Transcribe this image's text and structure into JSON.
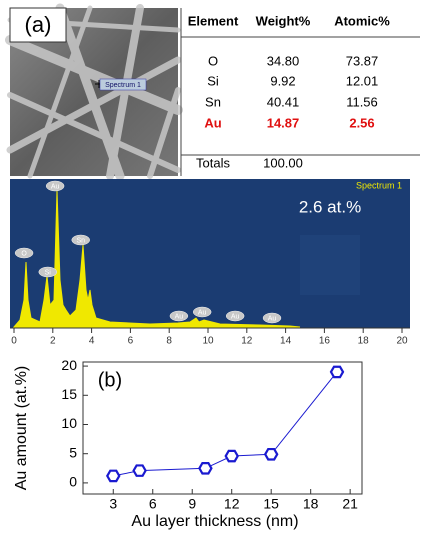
{
  "panel_a": {
    "label": "(a)",
    "sem_label": "Spectrum 1",
    "table": {
      "header": [
        "Element",
        "Weight%",
        "Atomic%"
      ],
      "rows": [
        [
          "O",
          "34.80",
          "73.87"
        ],
        [
          "Si",
          "9.92",
          "12.01"
        ],
        [
          "Sn",
          "40.41",
          "11.56"
        ],
        [
          "Au",
          "14.87",
          "2.56"
        ]
      ],
      "totals": [
        "Totals",
        "100.00"
      ]
    }
  },
  "spectrum": {
    "type": "spectrum",
    "title": "Spectrum 1",
    "annotation": "2.6 at.%",
    "xlim": [
      0,
      20
    ],
    "xticks": [
      0,
      2,
      4,
      6,
      8,
      10,
      12,
      14,
      16,
      18,
      20
    ],
    "peaks": [
      {
        "label": "O",
        "x": 0.52
      },
      {
        "label": "Si",
        "x": 1.74
      },
      {
        "label": "Au",
        "x": 2.12
      },
      {
        "label": "Sn",
        "x": 3.44
      },
      {
        "label": "Au",
        "x": 8.5
      },
      {
        "label": "Au",
        "x": 9.7
      },
      {
        "label": "Au",
        "x": 11.4
      },
      {
        "label": "Au",
        "x": 13.3
      }
    ]
  },
  "chart_data": {
    "type": "line",
    "label": "(b)",
    "x_label": "Au layer thickness (nm)",
    "y_label": "Au amount (at.%)",
    "x": [
      3,
      5,
      10,
      12,
      15,
      20
    ],
    "values": [
      1.2,
      2.1,
      2.5,
      4.6,
      4.9,
      19
    ],
    "color": "#1a1ad0",
    "xlim": [
      0.7,
      21.9
    ],
    "ylim": [
      -1.9,
      20.7
    ],
    "xticks": [
      3,
      6,
      9,
      12,
      15,
      18,
      21
    ],
    "yticks": [
      0,
      5,
      10,
      15,
      20
    ]
  }
}
